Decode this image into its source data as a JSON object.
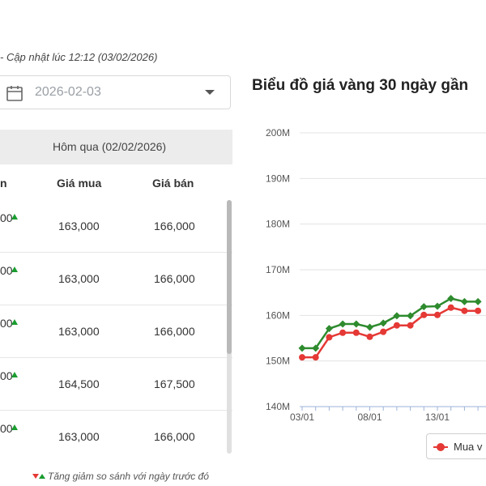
{
  "header": {
    "update_note": "- Cập nhật lúc 12:12 (03/02/2026)"
  },
  "date_picker": {
    "value": "2026-02-03",
    "icon": "calendar-icon"
  },
  "table": {
    "group_header": "Hôm qua (02/02/2026)",
    "col_partial": "n",
    "col_buy": "Giá mua",
    "col_sell": "Giá bán",
    "rows": [
      {
        "cut": "00",
        "trend": "up",
        "buy": "163,000",
        "sell": "166,000"
      },
      {
        "cut": "00",
        "trend": "up",
        "buy": "163,000",
        "sell": "166,000"
      },
      {
        "cut": "00",
        "trend": "up",
        "buy": "163,000",
        "sell": "166,000"
      },
      {
        "cut": "00",
        "trend": "up",
        "buy": "164,500",
        "sell": "167,500"
      },
      {
        "cut": "00",
        "trend": "up",
        "buy": "163,000",
        "sell": "166,000"
      }
    ]
  },
  "footnote": "Tăng giảm so sánh với ngày trước đó",
  "colors": {
    "up": "#1a9c2f",
    "down": "#e53935",
    "buy_series": "#e53935",
    "sell_series": "#2e8b2e"
  },
  "chart_title": "Biểu đồ giá vàng 30 ngày gần",
  "chart_data": {
    "type": "line",
    "title": "Biểu đồ giá vàng 30 ngày gần",
    "ylim": [
      140000000,
      200000000
    ],
    "yticks": [
      "140M",
      "150M",
      "160M",
      "170M",
      "180M",
      "190M",
      "200M"
    ],
    "xticks": [
      "03/01",
      "08/01",
      "13/01"
    ],
    "grid": true,
    "legend_placement": "bottom",
    "series": [
      {
        "name": "Mua v",
        "values": [
          150800000,
          150800000,
          155200000,
          156200000,
          156200000,
          155300000,
          156400000,
          157800000,
          157800000,
          160100000,
          160100000,
          161700000,
          161000000,
          161000000
        ]
      },
      {
        "values": [
          152800000,
          152800000,
          157100000,
          158100000,
          158100000,
          157400000,
          158300000,
          159900000,
          159900000,
          161900000,
          162000000,
          163700000,
          163000000,
          163000000
        ]
      }
    ]
  }
}
